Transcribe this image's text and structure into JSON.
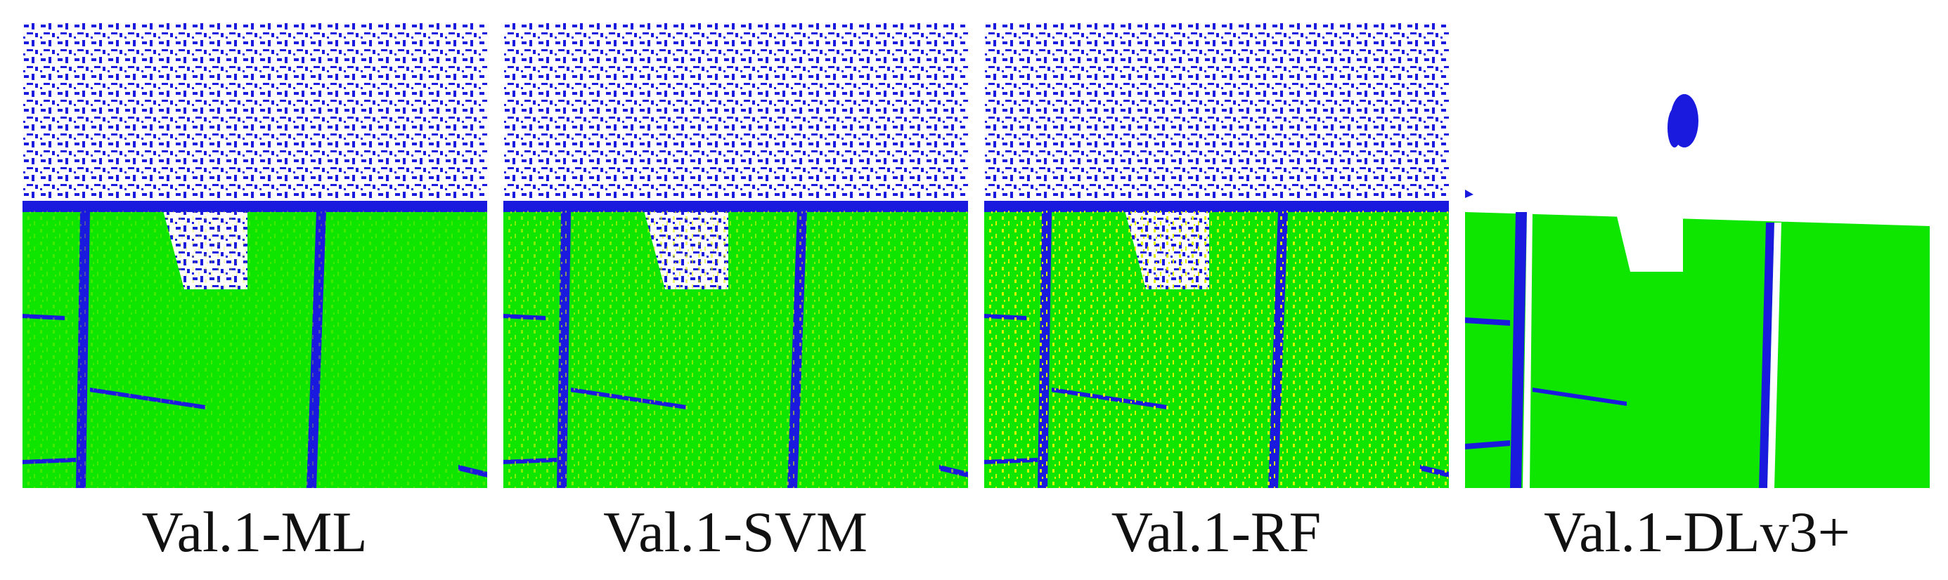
{
  "panels": [
    {
      "caption": "Val.1-ML"
    },
    {
      "caption": "Val.1-SVM"
    },
    {
      "caption": "Val.1-RF"
    },
    {
      "caption": "Val.1-DLv3+"
    }
  ]
}
